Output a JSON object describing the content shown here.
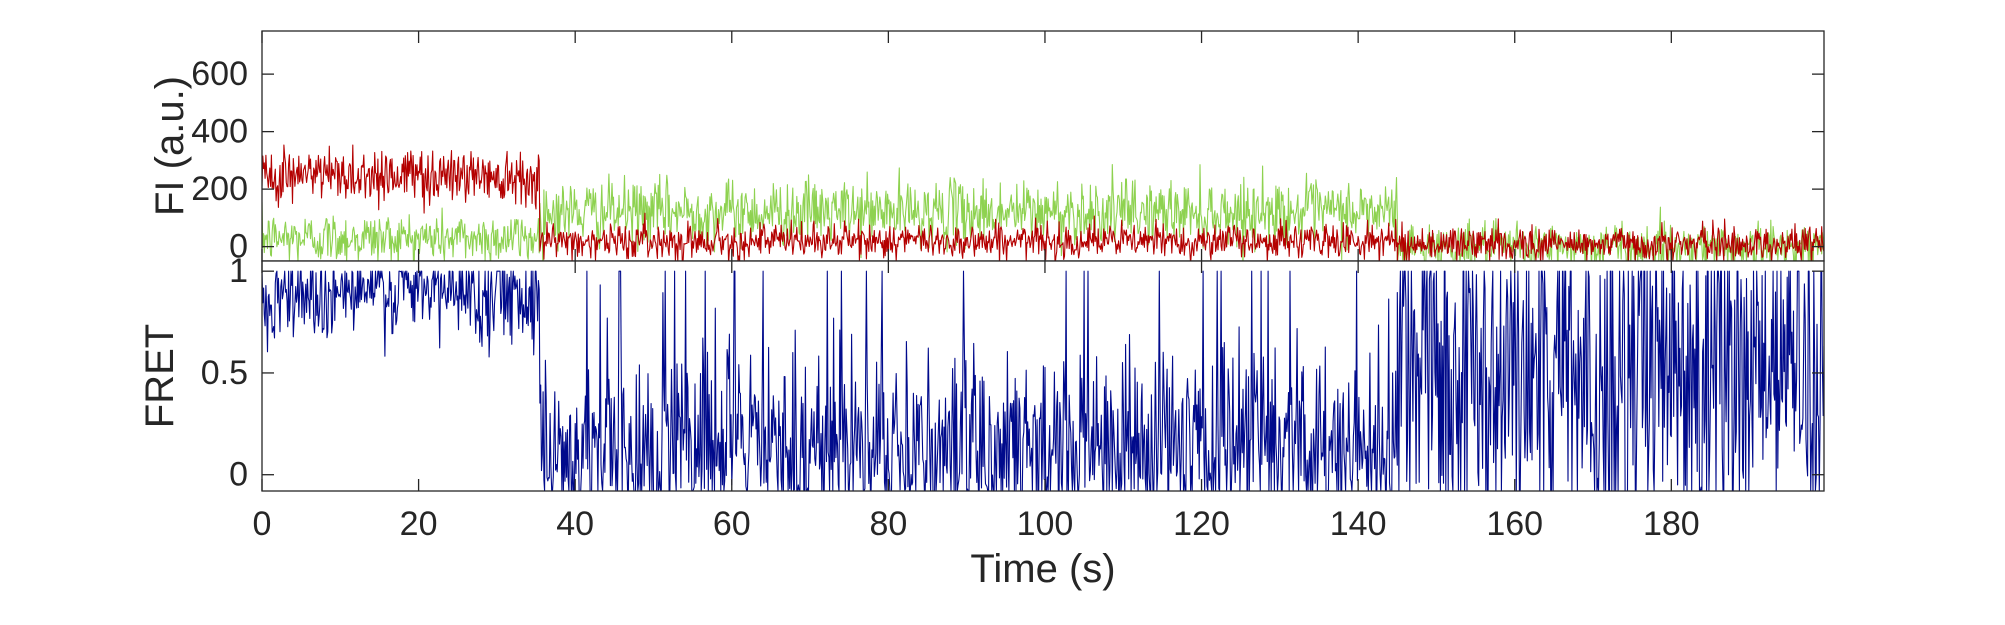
{
  "colors": {
    "donor": "#8ed250",
    "acceptor": "#b40000",
    "fret": "#000a8c",
    "axes": "#262626"
  },
  "chart_data": [
    {
      "type": "line",
      "title": "",
      "xlabel": "",
      "ylabel": "FI (a.u.)",
      "xlim": [
        0,
        199.5
      ],
      "ylim": [
        -50,
        750
      ],
      "yticks": [
        0,
        200,
        400,
        600
      ],
      "ytick_labels": [
        "0",
        "200",
        "400",
        "600"
      ],
      "xtick_labels_shown": false,
      "grid": false,
      "legend": "none",
      "sampling_interval_s": 0.1,
      "series": [
        {
          "color": "donor",
          "segments": [
            {
              "t_start": 0,
              "t_end": 35.5,
              "mean": 30,
              "noise": 45
            },
            {
              "t_start": 35.5,
              "t_end": 145,
              "mean": 120,
              "noise": 55
            },
            {
              "t_start": 145,
              "t_end": 199.5,
              "mean": 0,
              "noise": 40
            }
          ]
        },
        {
          "color": "acceptor",
          "segments": [
            {
              "t_start": 0,
              "t_end": 35.5,
              "mean": 250,
              "noise": 50
            },
            {
              "t_start": 35.5,
              "t_end": 145,
              "mean": 20,
              "noise": 30
            },
            {
              "t_start": 145,
              "t_end": 199.5,
              "mean": 10,
              "noise": 30
            }
          ]
        }
      ]
    },
    {
      "type": "line",
      "title": "",
      "xlabel": "Time (s)",
      "ylabel": "FRET",
      "xlim": [
        0,
        199.5
      ],
      "ylim": [
        -0.08,
        1.05
      ],
      "yticks": [
        0,
        0.5,
        1
      ],
      "ytick_labels": [
        "0",
        "0.5",
        "1"
      ],
      "xticks": [
        0,
        20,
        40,
        60,
        80,
        100,
        120,
        140,
        160,
        180
      ],
      "xtick_labels": [
        "0",
        "20",
        "40",
        "60",
        "80",
        "100",
        "120",
        "140",
        "160",
        "180"
      ],
      "grid": false,
      "legend": "none",
      "sampling_interval_s": 0.1,
      "series": [
        {
          "color": "fret",
          "segments": [
            {
              "t_start": 0,
              "t_end": 35.5,
              "mean": 0.9,
              "noise": 0.12,
              "clip": [
                -0.08,
                1.0
              ]
            },
            {
              "t_start": 35.5,
              "t_end": 145,
              "mean": 0.12,
              "noise": 0.25,
              "clip": [
                -0.08,
                1.0
              ],
              "spike_prob": 0.03
            },
            {
              "t_start": 145,
              "t_end": 199.5,
              "mean": 0.4,
              "noise": 0.45,
              "clip": [
                -0.08,
                1.0
              ],
              "spike_prob": 0.08
            }
          ]
        }
      ]
    }
  ]
}
